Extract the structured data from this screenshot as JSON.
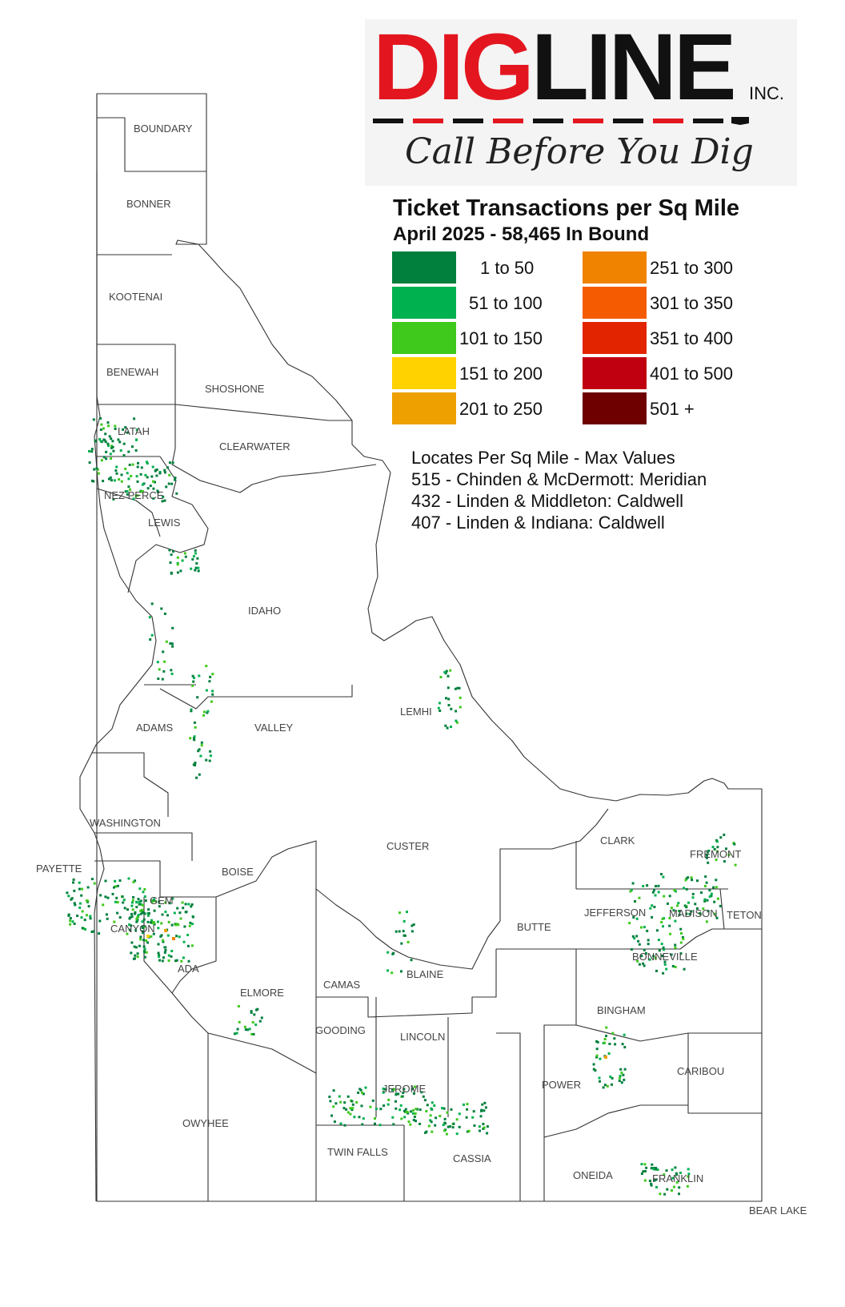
{
  "logo": {
    "dig": "DIG",
    "line": "LINE",
    "inc": "INC.",
    "tagline": "Call Before You Dig"
  },
  "legend": {
    "title": "Ticket Transactions per Sq Mile",
    "subtitle": "April 2025 - 58,465 In Bound",
    "items": [
      {
        "label": "1 to   50",
        "color": "#007f3d"
      },
      {
        "label": "51 to 100",
        "color": "#00b14f"
      },
      {
        "label": "101 to 150",
        "color": "#3ec91c"
      },
      {
        "label": "151 to 200",
        "color": "#ffd200"
      },
      {
        "label": "201 to 250",
        "color": "#eda000"
      },
      {
        "label": "251 to 300",
        "color": "#f08300"
      },
      {
        "label": "301 to 350",
        "color": "#f55b00"
      },
      {
        "label": "351 to 400",
        "color": "#e32400"
      },
      {
        "label": "401 to 500",
        "color": "#c00010"
      },
      {
        "label": "501 +",
        "color": "#6e0000"
      }
    ]
  },
  "notes": {
    "heading": "Locates Per Sq Mile - Max Values",
    "lines": [
      "515 - Chinden & McDermott: Meridian",
      "432 - Linden & Middleton: Caldwell",
      "407 - Linden & Indiana: Caldwell"
    ]
  },
  "counties": [
    "BOUNDARY",
    "BONNER",
    "KOOTENAI",
    "BENEWAH",
    "SHOSHONE",
    "LATAH",
    "CLEARWATER",
    "NEZ PERCE",
    "LEWIS",
    "IDAHO",
    "LEMHI",
    "ADAMS",
    "VALLEY",
    "WASHINGTON",
    "PAYETTE",
    "BOISE",
    "CUSTER",
    "CLARK",
    "FREMONT",
    "JEFFERSON",
    "MADISON",
    "TETON",
    "GEM",
    "CANYON",
    "ADA",
    "BUTTE",
    "BONNEVILLE",
    "ELMORE",
    "CAMAS",
    "BLAINE",
    "BINGHAM",
    "GOODING",
    "LINCOLN",
    "CARIBOU",
    "JEROME",
    "POWER",
    "OWYHEE",
    "TWIN FALLS",
    "CASSIA",
    "ONEIDA",
    "FRANKLIN",
    "BEAR LAKE"
  ]
}
